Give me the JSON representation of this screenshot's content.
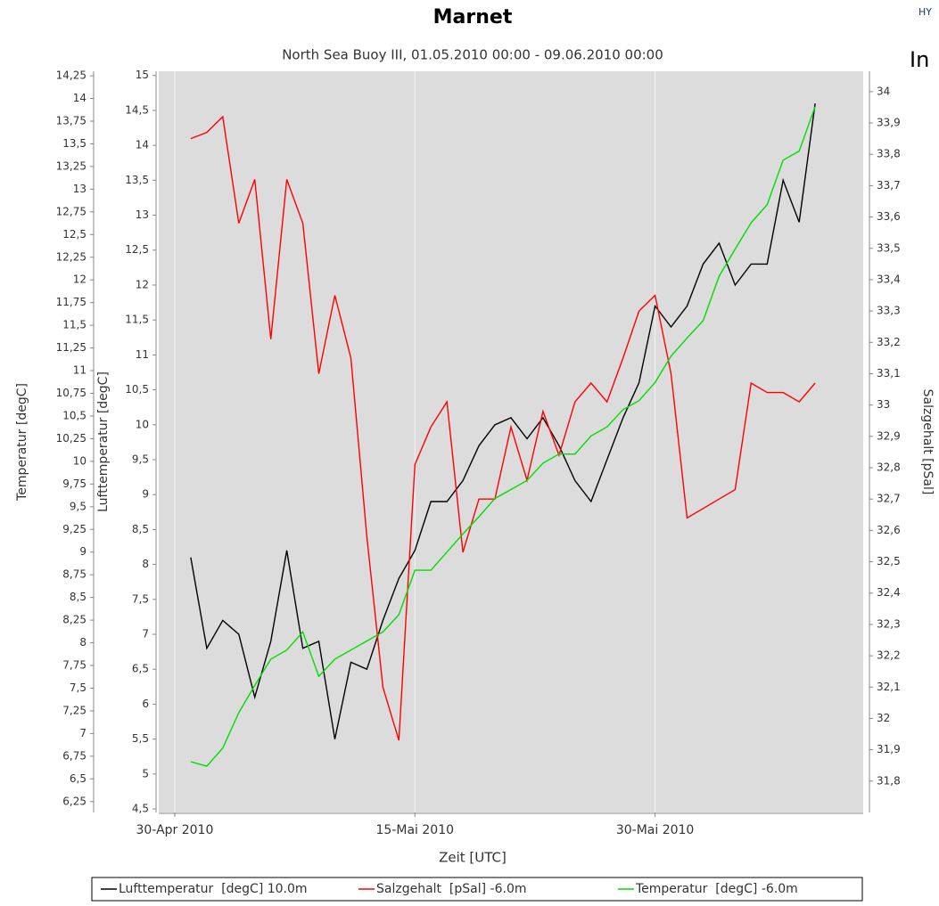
{
  "logo_text": [
    "HY",
    "In"
  ],
  "chart_data": {
    "type": "line",
    "title": "Marnet",
    "subtitle": "North Sea Buoy III, 01.05.2010 00:00 - 09.06.2010 00:00",
    "xlabel": "Zeit [UTC]",
    "ylabel": "Lufttemperatur  [degC]",
    "y2label": "Salzgehalt  [pSal]",
    "y3label": "Temperatur  [degC]",
    "grid": true,
    "legend": "bottom",
    "background": "#dcdcdc",
    "x": [
      "2010-05-01",
      "2010-05-02",
      "2010-05-03",
      "2010-05-04",
      "2010-05-05",
      "2010-05-06",
      "2010-05-07",
      "2010-05-08",
      "2010-05-09",
      "2010-05-10",
      "2010-05-11",
      "2010-05-12",
      "2010-05-13",
      "2010-05-14",
      "2010-05-15",
      "2010-05-16",
      "2010-05-17",
      "2010-05-18",
      "2010-05-19",
      "2010-05-20",
      "2010-05-21",
      "2010-05-22",
      "2010-05-23",
      "2010-05-24",
      "2010-05-25",
      "2010-05-26",
      "2010-05-27",
      "2010-05-28",
      "2010-05-29",
      "2010-05-30",
      "2010-05-31",
      "2010-06-01",
      "2010-06-02",
      "2010-06-03",
      "2010-06-04",
      "2010-06-05",
      "2010-06-06",
      "2010-06-07",
      "2010-06-08",
      "2010-06-09"
    ],
    "xlim": [
      "2010-04-29",
      "2010-06-12"
    ],
    "xticks": [
      {
        "value": "2010-04-30",
        "label": "30-Apr 2010"
      },
      {
        "value": "2010-05-15",
        "label": "15-Mai 2010"
      },
      {
        "value": "2010-05-30",
        "label": "30-Mai 2010"
      }
    ],
    "ylim": [
      4.45,
      15.06
    ],
    "yticks": [
      {
        "value": 4.5,
        "label": "4,5"
      },
      5,
      {
        "value": 5.5,
        "label": "5,5"
      },
      6,
      {
        "value": 6.5,
        "label": "6,5"
      },
      7,
      {
        "value": 7.5,
        "label": "7,5"
      },
      8,
      {
        "value": 8.5,
        "label": "8,5"
      },
      9,
      {
        "value": 9.5,
        "label": "9,5"
      },
      10,
      {
        "value": 10.5,
        "label": "10,5"
      },
      11,
      {
        "value": 11.5,
        "label": "11,5"
      },
      12,
      {
        "value": 12.5,
        "label": "12,5"
      },
      13,
      {
        "value": 13.5,
        "label": "13,5"
      },
      14,
      {
        "value": 14.5,
        "label": "14,5"
      },
      15
    ],
    "y2lim": [
      31.7,
      34.065
    ],
    "y2ticks": [
      {
        "value": 31.8,
        "label": "31,8"
      },
      {
        "value": 31.9,
        "label": "31,9"
      },
      32,
      {
        "value": 32.1,
        "label": "32,1"
      },
      {
        "value": 32.2,
        "label": "32,2"
      },
      {
        "value": 32.3,
        "label": "32,3"
      },
      {
        "value": 32.4,
        "label": "32,4"
      },
      {
        "value": 32.5,
        "label": "32,5"
      },
      {
        "value": 32.6,
        "label": "32,6"
      },
      {
        "value": 32.7,
        "label": "32,7"
      },
      {
        "value": 32.8,
        "label": "32,8"
      },
      {
        "value": 32.9,
        "label": "32,9"
      },
      33,
      {
        "value": 33.1,
        "label": "33,1"
      },
      {
        "value": 33.2,
        "label": "33,2"
      },
      {
        "value": 33.3,
        "label": "33,3"
      },
      {
        "value": 33.4,
        "label": "33,4"
      },
      {
        "value": 33.5,
        "label": "33,5"
      },
      {
        "value": 33.6,
        "label": "33,6"
      },
      {
        "value": 33.7,
        "label": "33,7"
      },
      {
        "value": 33.8,
        "label": "33,8"
      },
      {
        "value": 33.9,
        "label": "33,9"
      },
      34
    ],
    "y3lim": [
      6.13,
      14.3
    ],
    "y3ticks": [
      {
        "value": 6.25,
        "label": "6,25"
      },
      {
        "value": 6.5,
        "label": "6,5"
      },
      {
        "value": 6.75,
        "label": "6,75"
      },
      7,
      {
        "value": 7.25,
        "label": "7,25"
      },
      {
        "value": 7.5,
        "label": "7,5"
      },
      {
        "value": 7.75,
        "label": "7,75"
      },
      8,
      {
        "value": 8.25,
        "label": "8,25"
      },
      {
        "value": 8.5,
        "label": "8,5"
      },
      {
        "value": 8.75,
        "label": "8,75"
      },
      9,
      {
        "value": 9.25,
        "label": "9,25"
      },
      {
        "value": 9.5,
        "label": "9,5"
      },
      {
        "value": 9.75,
        "label": "9,75"
      },
      10,
      {
        "value": 10.25,
        "label": "10,25"
      },
      {
        "value": 10.5,
        "label": "10,5"
      },
      {
        "value": 10.75,
        "label": "10,75"
      },
      11,
      {
        "value": 11.25,
        "label": "11,25"
      },
      {
        "value": 11.5,
        "label": "11,5"
      },
      {
        "value": 11.75,
        "label": "11,75"
      },
      12,
      {
        "value": 12.25,
        "label": "12,25"
      },
      {
        "value": 12.5,
        "label": "12,5"
      },
      {
        "value": 12.75,
        "label": "12,75"
      },
      13,
      {
        "value": 13.25,
        "label": "13,25"
      },
      {
        "value": 13.5,
        "label": "13,5"
      },
      {
        "value": 13.75,
        "label": "13,75"
      },
      14,
      {
        "value": 14.25,
        "label": "14,25"
      }
    ],
    "series": [
      {
        "name": "Lufttemperatur  [degC] 10.0m",
        "color": "#000000",
        "axis": "y",
        "values": [
          8.1,
          6.8,
          7.2,
          7.0,
          6.1,
          6.9,
          8.2,
          6.8,
          6.9,
          5.5,
          6.6,
          6.5,
          7.2,
          7.8,
          8.2,
          8.9,
          8.9,
          9.2,
          9.7,
          10.0,
          10.1,
          9.8,
          10.1,
          9.7,
          9.2,
          8.9,
          9.5,
          10.1,
          10.6,
          11.7,
          11.4,
          11.7,
          12.3,
          12.6,
          12.0,
          12.3,
          12.3,
          13.5,
          12.9,
          14.6
        ]
      },
      {
        "name": "Salzgehalt  [pSal] -6.0m",
        "color": "#ff0000",
        "axis": "y2",
        "values": [
          33.85,
          33.87,
          33.92,
          33.58,
          33.72,
          33.21,
          33.72,
          33.58,
          33.1,
          33.35,
          33.15,
          32.58,
          32.1,
          31.93,
          32.81,
          32.93,
          33.01,
          32.53,
          32.7,
          32.7,
          32.93,
          32.76,
          32.98,
          32.84,
          33.01,
          33.07,
          33.01,
          33.15,
          33.3,
          33.35,
          33.1,
          32.64,
          32.67,
          32.7,
          32.73,
          33.07,
          33.04,
          33.04,
          33.01,
          33.07
        ]
      },
      {
        "name": "Temperatur  [degC] -6.0m",
        "color": "#00dd00",
        "axis": "y3",
        "values": [
          6.69,
          6.64,
          6.84,
          7.23,
          7.53,
          7.82,
          7.92,
          8.12,
          7.63,
          7.82,
          7.92,
          8.02,
          8.12,
          8.31,
          8.8,
          8.8,
          9.0,
          9.2,
          9.39,
          9.59,
          9.69,
          9.79,
          9.98,
          10.08,
          10.08,
          10.28,
          10.38,
          10.57,
          10.67,
          10.87,
          11.16,
          11.36,
          11.55,
          12.04,
          12.34,
          12.63,
          12.83,
          13.32,
          13.42,
          13.91
        ]
      }
    ]
  }
}
